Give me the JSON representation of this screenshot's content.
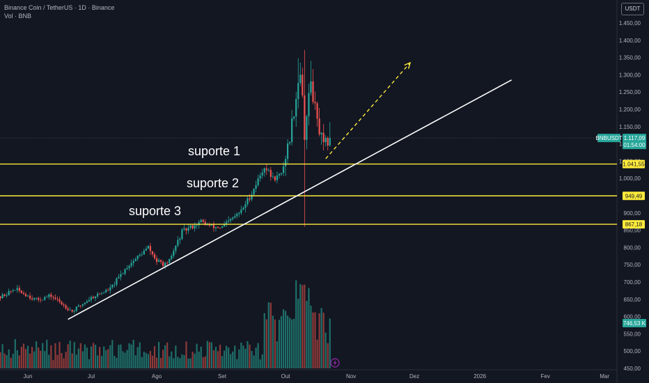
{
  "header": {
    "title": "Binance Coin / TetherUS · 1D · Binance",
    "volume_label": "Vol · BNB"
  },
  "currency_button": "USDT",
  "colors": {
    "background": "#131722",
    "up": "#26a69a",
    "down": "#ef5350",
    "support_line": "#ffeb3b",
    "trendline": "#ffffff",
    "last_price_tag": "#26a69a",
    "volume_up": "#1e6f69",
    "volume_down": "#8e3a3a"
  },
  "chart_data": {
    "type": "candlestick",
    "symbol": "BNBUSDT",
    "ylim": [
      440,
      1480
    ],
    "y_ticks": [
      "450,00",
      "500,00",
      "550,00",
      "600,00",
      "650,00",
      "700,00",
      "750,00",
      "800,00",
      "850,00",
      "900,00",
      "950,00",
      "1.000,00",
      "1.050,00",
      "1.100,00",
      "1.150,00",
      "1.200,00",
      "1.250,00",
      "1.300,00",
      "1.350,00",
      "1.400,00",
      "1.450,00"
    ],
    "x_ticks": [
      {
        "label": "Jun",
        "date": "2025-06-01"
      },
      {
        "label": "Jul",
        "date": "2025-07-01"
      },
      {
        "label": "Ago",
        "date": "2025-08-01"
      },
      {
        "label": "Set",
        "date": "2025-09-01"
      },
      {
        "label": "Out",
        "date": "2025-10-01"
      },
      {
        "label": "Nov",
        "date": "2025-11-01"
      },
      {
        "label": "Dez",
        "date": "2025-12-01"
      },
      {
        "label": "2026",
        "date": "2026-01-01"
      },
      {
        "label": "Fev",
        "date": "2026-02-01"
      },
      {
        "label": "Mar",
        "date": "2026-03-01"
      }
    ],
    "support_levels": [
      {
        "label": "suporte 1",
        "price": 1041.55,
        "tag": "1.041,55"
      },
      {
        "label": "suporte 2",
        "price": 949.49,
        "tag": "949,49"
      },
      {
        "label": "suporte 3",
        "price": 867.18,
        "tag": "867,18"
      }
    ],
    "last_price": {
      "symbol": "BNBUSDT",
      "price": 1117.09,
      "price_label": "1.117,09",
      "countdown": "01:54:00"
    },
    "volume_tag": "746,53 K",
    "trendline": {
      "start": {
        "date": "2025-06-20",
        "price": 592
      },
      "end": {
        "date": "2026-01-16",
        "price": 1285
      }
    },
    "projection_arrow": {
      "start": {
        "date": "2025-10-20",
        "price": 1057
      },
      "end": {
        "date": "2025-11-29",
        "price": 1335
      }
    },
    "ohlc_closes": [
      {
        "date": "2025-05-16",
        "close": 646
      },
      {
        "date": "2025-05-26",
        "close": 680
      },
      {
        "date": "2025-06-05",
        "close": 648
      },
      {
        "date": "2025-06-12",
        "close": 660
      },
      {
        "date": "2025-06-22",
        "close": 615
      },
      {
        "date": "2025-07-01",
        "close": 655
      },
      {
        "date": "2025-07-10",
        "close": 680
      },
      {
        "date": "2025-07-18",
        "close": 745
      },
      {
        "date": "2025-07-28",
        "close": 800
      },
      {
        "date": "2025-08-01",
        "close": 760
      },
      {
        "date": "2025-08-06",
        "close": 748
      },
      {
        "date": "2025-08-13",
        "close": 845
      },
      {
        "date": "2025-08-22",
        "close": 875
      },
      {
        "date": "2025-08-27",
        "close": 860
      },
      {
        "date": "2025-09-01",
        "close": 858
      },
      {
        "date": "2025-09-10",
        "close": 905
      },
      {
        "date": "2025-09-15",
        "close": 958
      },
      {
        "date": "2025-09-21",
        "close": 1035
      },
      {
        "date": "2025-09-25",
        "close": 1000
      },
      {
        "date": "2025-09-29",
        "close": 1010
      },
      {
        "date": "2025-10-03",
        "close": 1120
      },
      {
        "date": "2025-10-08",
        "close": 1320
      },
      {
        "date": "2025-10-10",
        "close": 1130
      },
      {
        "date": "2025-10-13",
        "close": 1280
      },
      {
        "date": "2025-10-16",
        "close": 1160
      },
      {
        "date": "2025-10-19",
        "close": 1090
      },
      {
        "date": "2025-10-22",
        "close": 1117
      }
    ],
    "series": [
      {
        "name": "BNBUSDT"
      },
      {
        "name": "Vol · BNB"
      }
    ]
  },
  "volume_markers": {
    "lightning_icon": "lightning-icon"
  }
}
